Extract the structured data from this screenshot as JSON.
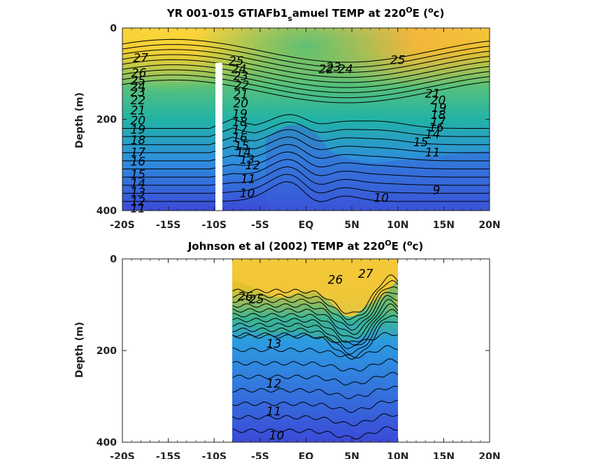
{
  "chart_data": [
    {
      "type": "contour",
      "title_main": "YR 001-015 GTIAFb1",
      "title_sub": "s",
      "title_rest": "amuel TEMP at 220",
      "title_sup": "O",
      "title_end": "E (",
      "title_unit_sup": "o",
      "title_close": "c)",
      "ylabel": "Depth (m)",
      "xlim": [
        -20,
        20
      ],
      "ylim": [
        0,
        400
      ],
      "x_ticks": [
        "-20S",
        "-15S",
        "-10S",
        "-5S",
        "EQ",
        "5N",
        "10N",
        "15N",
        "20N"
      ],
      "y_ticks": [
        "0",
        "200",
        "400"
      ],
      "data_extent_x": [
        -20,
        20
      ],
      "colors": {
        "warm": "#f7c93a",
        "mid": "#22b3a6",
        "cool": "#3b4ad8"
      },
      "contour_levels": [
        9,
        10,
        11,
        12,
        13,
        14,
        15,
        16,
        17,
        18,
        19,
        20,
        21,
        22,
        23,
        24,
        25,
        26,
        27
      ],
      "contour_labels": [
        {
          "text": "27",
          "x": -18,
          "y": 65
        },
        {
          "text": "26",
          "x": -18.2,
          "y": 98
        },
        {
          "text": "25",
          "x": -18.3,
          "y": 115
        },
        {
          "text": "24",
          "x": -18.3,
          "y": 128
        },
        {
          "text": "23",
          "x": -18.3,
          "y": 140
        },
        {
          "text": "22",
          "x": -18.3,
          "y": 158
        },
        {
          "text": "21",
          "x": -18.3,
          "y": 180
        },
        {
          "text": "20",
          "x": -18.3,
          "y": 202
        },
        {
          "text": "19",
          "x": -18.3,
          "y": 222
        },
        {
          "text": "18",
          "x": -18.3,
          "y": 245
        },
        {
          "text": "17",
          "x": -18.3,
          "y": 272
        },
        {
          "text": "16",
          "x": -18.3,
          "y": 292
        },
        {
          "text": "15",
          "x": -18.3,
          "y": 320
        },
        {
          "text": "14",
          "x": -18.3,
          "y": 340
        },
        {
          "text": "13",
          "x": -18.3,
          "y": 360
        },
        {
          "text": "12",
          "x": -18.3,
          "y": 380
        },
        {
          "text": "11",
          "x": -18.3,
          "y": 395
        },
        {
          "text": "25",
          "x": -7.6,
          "y": 72
        },
        {
          "text": "24",
          "x": -7.3,
          "y": 90
        },
        {
          "text": "23",
          "x": -7.1,
          "y": 105
        },
        {
          "text": "22",
          "x": -7.0,
          "y": 125
        },
        {
          "text": "21",
          "x": -7.1,
          "y": 145
        },
        {
          "text": "20",
          "x": -7.1,
          "y": 165
        },
        {
          "text": "19",
          "x": -7.2,
          "y": 188
        },
        {
          "text": "18",
          "x": -7.2,
          "y": 205
        },
        {
          "text": "17",
          "x": -7.2,
          "y": 222
        },
        {
          "text": "16",
          "x": -7.2,
          "y": 240
        },
        {
          "text": "15",
          "x": -7.0,
          "y": 258
        },
        {
          "text": "14",
          "x": -6.8,
          "y": 272
        },
        {
          "text": "13",
          "x": -6.4,
          "y": 288
        },
        {
          "text": "12",
          "x": -5.8,
          "y": 300
        },
        {
          "text": "11",
          "x": -6.3,
          "y": 330
        },
        {
          "text": "10",
          "x": -6.4,
          "y": 362
        },
        {
          "text": "22",
          "x": 2.2,
          "y": 90
        },
        {
          "text": "23",
          "x": 3.0,
          "y": 85
        },
        {
          "text": "24",
          "x": 4.3,
          "y": 90
        },
        {
          "text": "25",
          "x": 10.0,
          "y": 70
        },
        {
          "text": "21",
          "x": 13.8,
          "y": 143
        },
        {
          "text": "20",
          "x": 14.4,
          "y": 158
        },
        {
          "text": "19",
          "x": 14.5,
          "y": 175
        },
        {
          "text": "18",
          "x": 14.4,
          "y": 190
        },
        {
          "text": "17",
          "x": 14.4,
          "y": 205
        },
        {
          "text": "16",
          "x": 14.2,
          "y": 218
        },
        {
          "text": "15",
          "x": 12.5,
          "y": 250
        },
        {
          "text": "14",
          "x": 13.8,
          "y": 232
        },
        {
          "text": "11",
          "x": 13.8,
          "y": 272
        },
        {
          "text": "10",
          "x": 8.2,
          "y": 372
        },
        {
          "text": "9",
          "x": 14.2,
          "y": 355
        }
      ]
    },
    {
      "type": "contour",
      "title_main": "Johnson et al (2002) TEMP at 220",
      "title_sup": "O",
      "title_end": "E (",
      "title_unit_sup": "o",
      "title_close": "c)",
      "ylabel": "Depth (m)",
      "xlim": [
        -20,
        20
      ],
      "ylim": [
        0,
        400
      ],
      "x_ticks": [
        "-20S",
        "-15S",
        "-10S",
        "-5S",
        "EQ",
        "5N",
        "10N",
        "15N",
        "20N"
      ],
      "y_ticks": [
        "0",
        "200",
        "400"
      ],
      "data_extent_x": [
        -8,
        10
      ],
      "colors": {
        "warm": "#f7c93a",
        "mid": "#22b3a6",
        "cool": "#3b4ad8"
      },
      "contour_levels": [
        10,
        11,
        12,
        13,
        14,
        15,
        16,
        17,
        18,
        19,
        20,
        21,
        22,
        23,
        24,
        25,
        26,
        27
      ],
      "contour_labels": [
        {
          "text": "27",
          "x": 6.5,
          "y": 32
        },
        {
          "text": "26",
          "x": 3.2,
          "y": 45
        },
        {
          "text": "26",
          "x": -6.6,
          "y": 82
        },
        {
          "text": "25",
          "x": -5.4,
          "y": 88
        },
        {
          "text": "13",
          "x": -3.5,
          "y": 185
        },
        {
          "text": "12",
          "x": -3.5,
          "y": 272
        },
        {
          "text": "11",
          "x": -3.5,
          "y": 332
        },
        {
          "text": "10",
          "x": -3.2,
          "y": 385
        }
      ]
    }
  ]
}
